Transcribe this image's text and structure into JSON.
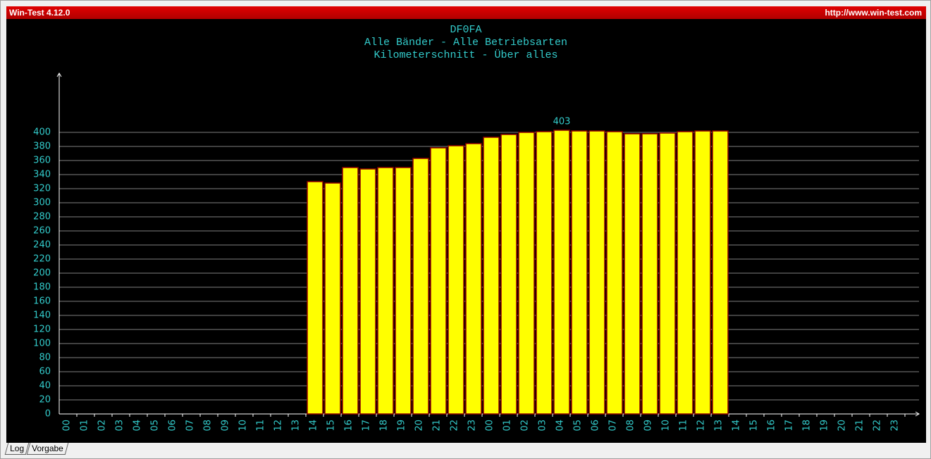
{
  "window": {
    "title": "Win-Test 4.12.0",
    "url": "http://www.win-test.com",
    "tabs": [
      "Log",
      "Vorgabe"
    ]
  },
  "chart_data": {
    "type": "bar",
    "title": "DF0FA",
    "subtitle": [
      "Alle Bänder - Alle Betriebsarten",
      "Kilometerschnitt - Über alles"
    ],
    "categories": [
      "00",
      "01",
      "02",
      "03",
      "04",
      "05",
      "06",
      "07",
      "08",
      "09",
      "10",
      "11",
      "12",
      "13",
      "14",
      "15",
      "16",
      "17",
      "18",
      "19",
      "20",
      "21",
      "22",
      "23",
      "00",
      "01",
      "02",
      "03",
      "04",
      "05",
      "06",
      "07",
      "08",
      "09",
      "10",
      "11",
      "12",
      "13",
      "14",
      "15",
      "16",
      "17",
      "18",
      "19",
      "20",
      "21",
      "22",
      "23"
    ],
    "values": [
      null,
      null,
      null,
      null,
      null,
      null,
      null,
      null,
      null,
      null,
      null,
      null,
      null,
      null,
      330,
      328,
      350,
      348,
      350,
      350,
      363,
      378,
      381,
      384,
      393,
      397,
      400,
      401,
      403,
      402,
      402,
      401,
      398,
      398,
      399,
      401,
      402,
      402,
      null,
      null,
      null,
      null,
      null,
      null,
      null,
      null,
      null,
      null
    ],
    "color": "#ffff00",
    "ylim": [
      0,
      484
    ],
    "yticks": [
      0,
      20,
      40,
      60,
      80,
      100,
      120,
      140,
      160,
      180,
      200,
      220,
      240,
      260,
      280,
      300,
      320,
      340,
      360,
      380,
      400
    ],
    "grid": true
  }
}
